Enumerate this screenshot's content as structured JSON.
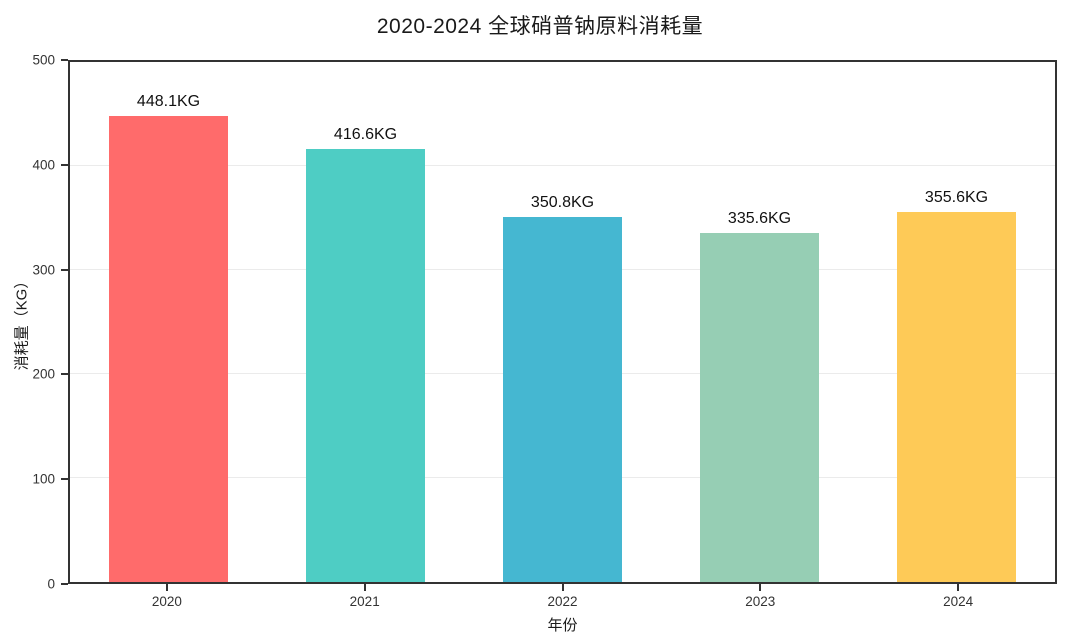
{
  "chart_data": {
    "type": "bar",
    "title": "2020-2024 全球硝普钠原料消耗量",
    "xlabel": "年份",
    "ylabel": "消耗量（KG）",
    "categories": [
      "2020",
      "2021",
      "2022",
      "2023",
      "2024"
    ],
    "values": [
      448.1,
      416.6,
      350.8,
      335.6,
      355.6
    ],
    "value_labels": [
      "448.1KG",
      "416.6KG",
      "350.8KG",
      "335.6KG",
      "355.6KG"
    ],
    "value_unit": "KG",
    "bar_colors": [
      "#FF6B6B",
      "#4ECDC4",
      "#45B7D1",
      "#96CEB4",
      "#FECA57"
    ],
    "ylim": [
      0,
      500
    ],
    "yticks": [
      0,
      100,
      200,
      300,
      400,
      500
    ],
    "grid": "horizontal",
    "grid_color": "#ebebeb",
    "axis_color": "#333333",
    "background_color": "#ffffff",
    "legend": "none"
  }
}
